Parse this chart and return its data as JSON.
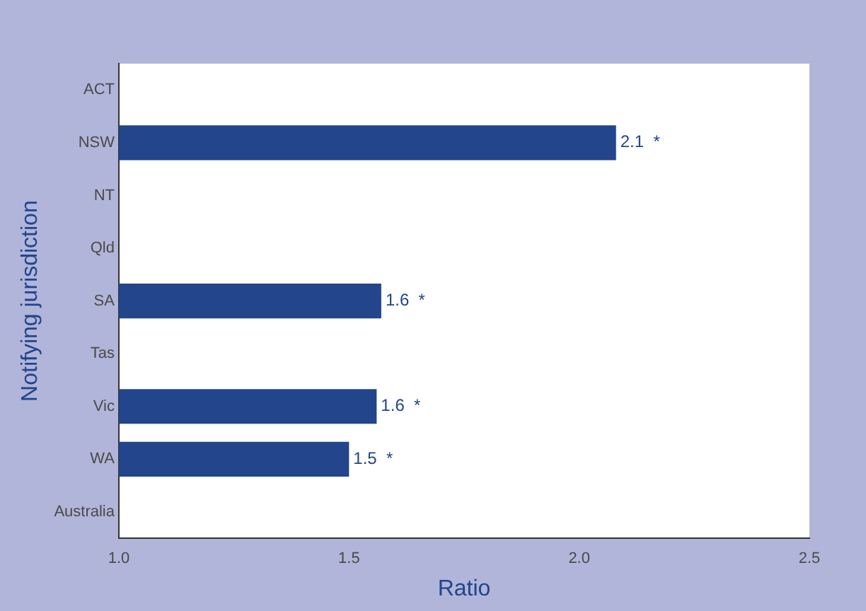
{
  "chart_data": {
    "type": "bar",
    "orientation": "horizontal",
    "xlabel": "Ratio",
    "ylabel": "Notifying jurisdiction",
    "categories": [
      "ACT",
      "NSW",
      "NT",
      "Qld",
      "SA",
      "Tas",
      "Vic",
      "WA",
      "Australia"
    ],
    "values": [
      null,
      2.08,
      null,
      null,
      1.57,
      null,
      1.56,
      1.5,
      null
    ],
    "value_labels": [
      null,
      "2.1  *",
      null,
      null,
      "1.6  *",
      null,
      "1.6  *",
      "1.5  *",
      null
    ],
    "color": "#22458c",
    "xlim": [
      1.0,
      2.5
    ],
    "xticks": [
      {
        "value": 1.0,
        "label": "1.0"
      },
      {
        "value": 1.5,
        "label": "1.5"
      },
      {
        "value": 2.0,
        "label": "2.0"
      },
      {
        "value": 2.5,
        "label": "2.5"
      }
    ],
    "grid": false,
    "legend": false
  }
}
